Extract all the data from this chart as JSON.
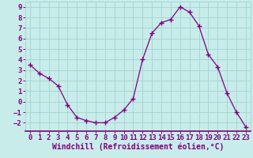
{
  "x": [
    0,
    1,
    2,
    3,
    4,
    5,
    6,
    7,
    8,
    9,
    10,
    11,
    12,
    13,
    14,
    15,
    16,
    17,
    18,
    19,
    20,
    21,
    22,
    23
  ],
  "y": [
    3.5,
    2.7,
    2.2,
    1.5,
    -0.3,
    -1.5,
    -1.8,
    -2.0,
    -2.0,
    -1.5,
    -0.8,
    0.3,
    4.0,
    6.5,
    7.5,
    7.8,
    9.0,
    8.5,
    7.2,
    4.5,
    3.3,
    0.8,
    -1.0,
    -2.4
  ],
  "line_color": "#800080",
  "marker": "+",
  "marker_size": 4,
  "bg_color": "#c8ecea",
  "grid_color": "#a0d4d0",
  "xlabel": "Windchill (Refroidissement éolien,°C)",
  "xlabel_color": "#800080",
  "xlabel_fontsize": 7,
  "tick_color": "#800080",
  "tick_fontsize": 6.5,
  "ylim": [
    -2.8,
    9.5
  ],
  "xlim": [
    -0.5,
    23.5
  ],
  "yticks": [
    -2,
    -1,
    0,
    1,
    2,
    3,
    4,
    5,
    6,
    7,
    8,
    9
  ],
  "xticks": [
    0,
    1,
    2,
    3,
    4,
    5,
    6,
    7,
    8,
    9,
    10,
    11,
    12,
    13,
    14,
    15,
    16,
    17,
    18,
    19,
    20,
    21,
    22,
    23
  ],
  "spine_color": "#800080",
  "spine_bottom_color": "#800080",
  "line_width": 0.9,
  "marker_edge_width": 1.0
}
